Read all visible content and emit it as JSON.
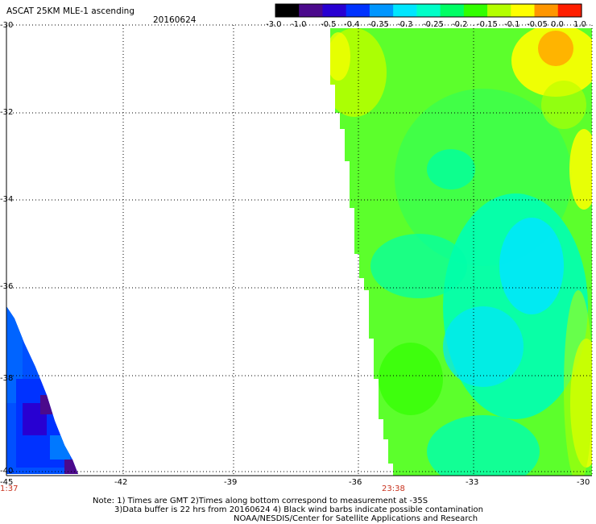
{
  "header": {
    "title": "ASCAT 25KM MLE-1 ascending",
    "date": "20160624"
  },
  "colorbar": {
    "labels": [
      "-3.0",
      "-1.0",
      "-0.5",
      "-0.4",
      "-0.35",
      "-0.3",
      "-0.25",
      "-0.2",
      "-0.15",
      "-0.1",
      "-0.05",
      "0.0",
      "1.0"
    ],
    "colors": [
      "#000000",
      "#4b0a8c",
      "#2800d2",
      "#0032ff",
      "#0096ff",
      "#00e6ff",
      "#00ffc8",
      "#00ff64",
      "#32ff00",
      "#b4ff00",
      "#ffff00",
      "#ff9600",
      "#ff1e00"
    ]
  },
  "axes": {
    "lat_labels": [
      "-30",
      "-32",
      "-34",
      "-36",
      "-38",
      "-40"
    ],
    "lon_labels": [
      "-45",
      "-42",
      "-39",
      "-36",
      "-33",
      "-30"
    ],
    "lat_range": [
      -40,
      -30
    ],
    "lon_range": [
      -45,
      -30
    ]
  },
  "time_labels": [
    "1:37",
    "23:38"
  ],
  "notes": [
    "Note: 1) Times are GMT 2)Times along bottom correspond to measurement at -35S",
    "3)Data buffer is 22 hrs from 20160624 4) Black wind barbs indicate possible contamination",
    "NOAA/NESDIS/Center for Satellite Applications and Research"
  ]
}
